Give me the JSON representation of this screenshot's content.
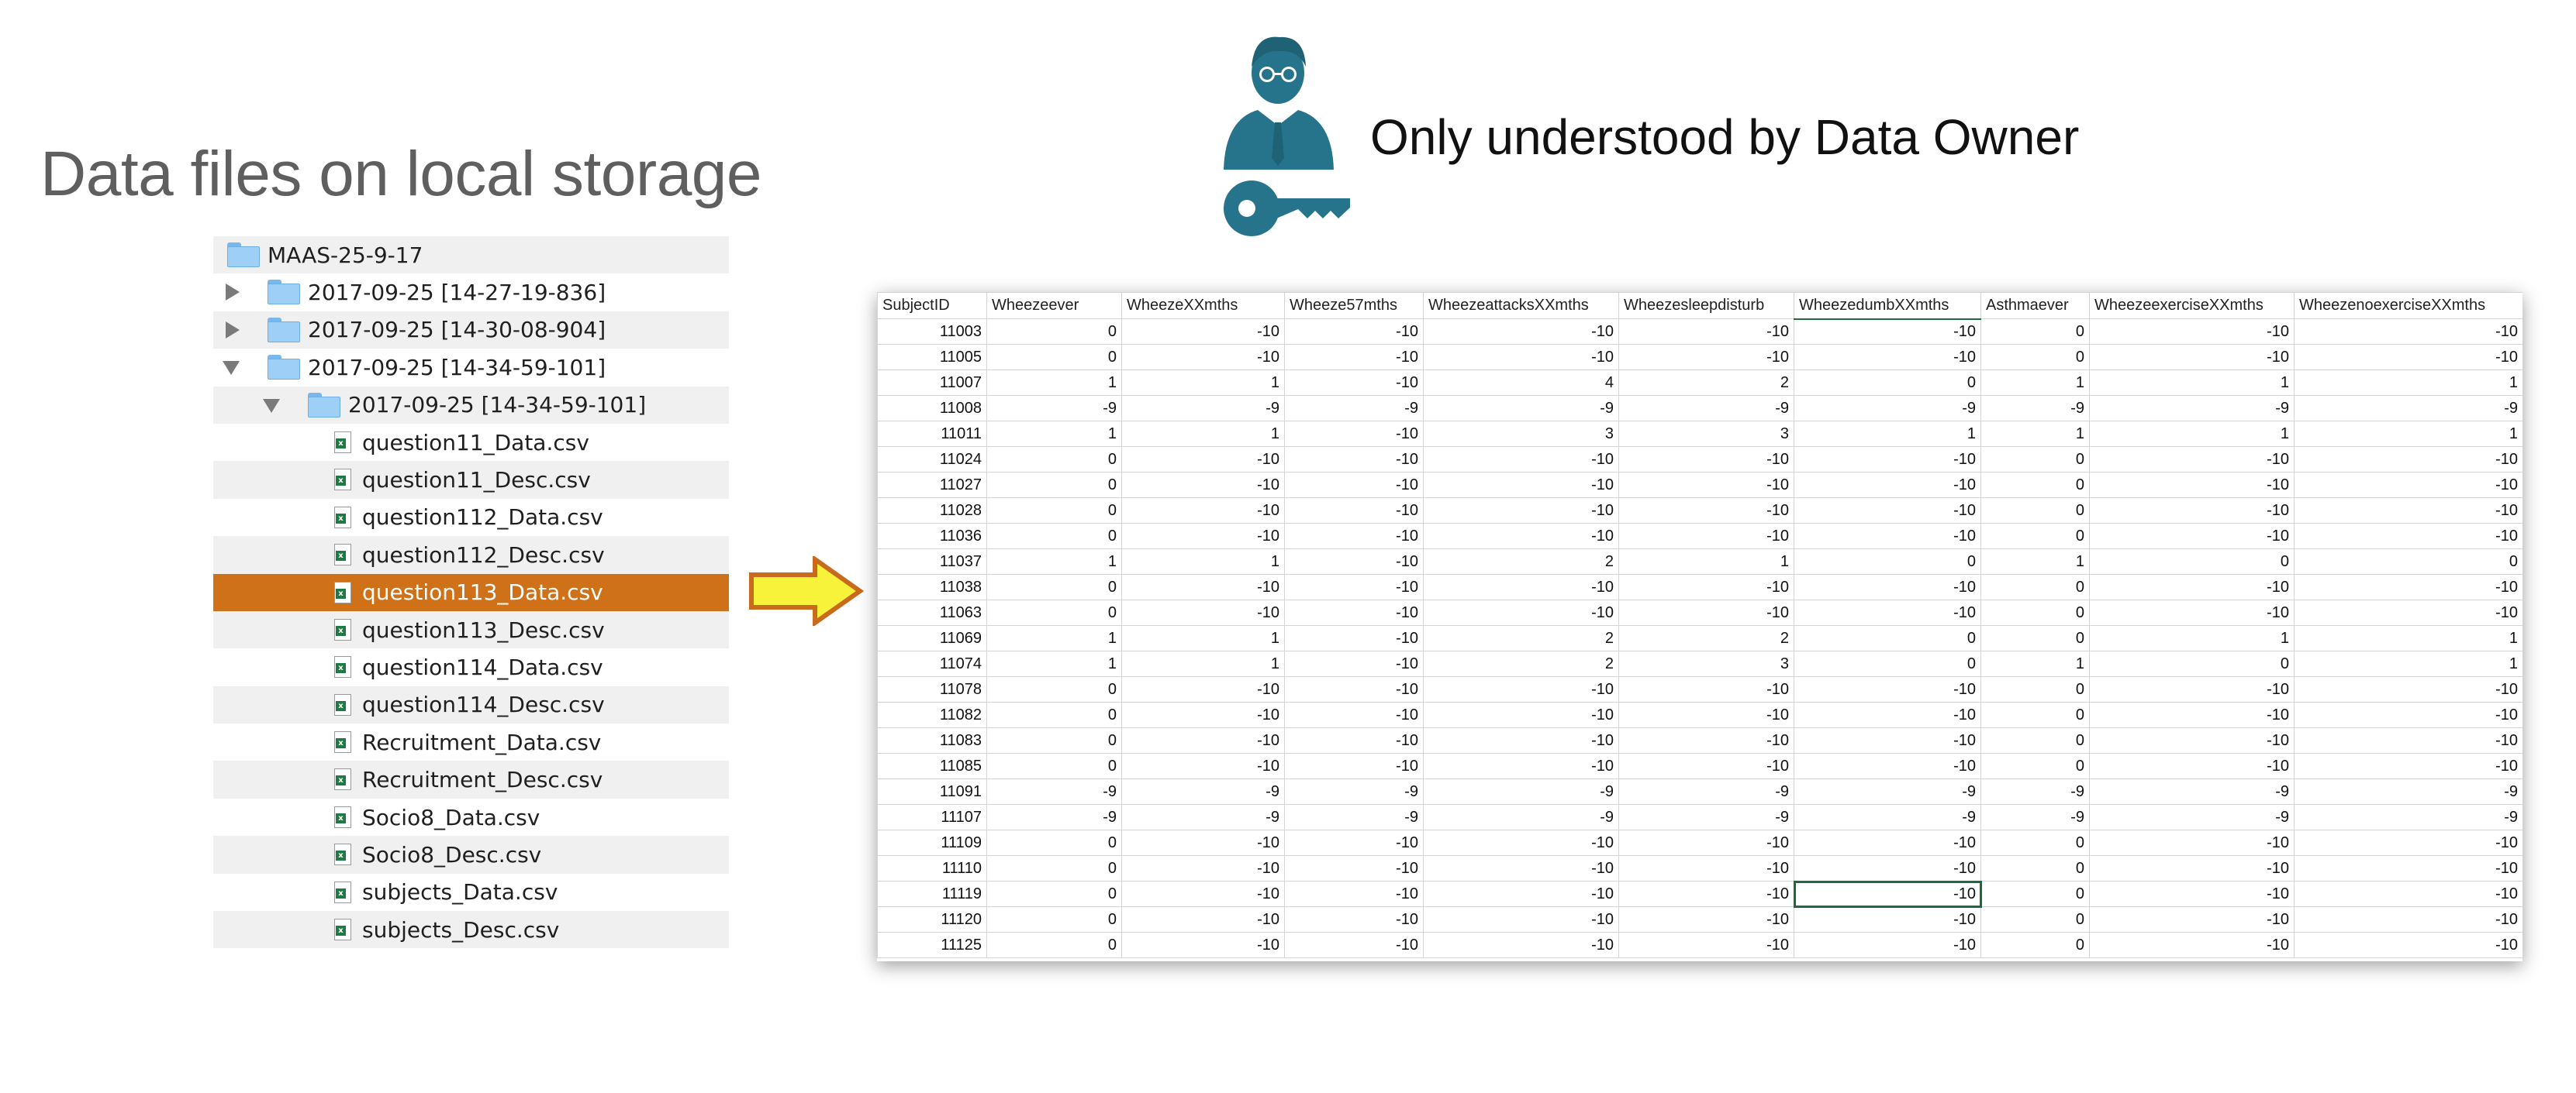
{
  "title": "Data files on local storage",
  "owner_label": "Only understood by Data Owner",
  "tree": [
    {
      "label": "MAAS-25-9-17",
      "type": "folder",
      "toggle": "none",
      "indent": 0,
      "shade": true
    },
    {
      "label": "2017-09-25 [14-27-19-836]",
      "type": "folder",
      "toggle": "collapsed",
      "indent": 1,
      "shade": false
    },
    {
      "label": "2017-09-25 [14-30-08-904]",
      "type": "folder",
      "toggle": "collapsed",
      "indent": 1,
      "shade": true
    },
    {
      "label": "2017-09-25 [14-34-59-101]",
      "type": "folder",
      "toggle": "expanded",
      "indent": 1,
      "shade": false
    },
    {
      "label": "2017-09-25 [14-34-59-101]",
      "type": "folder",
      "toggle": "expanded",
      "indent": 2,
      "shade": true
    },
    {
      "label": "question11_Data.csv",
      "type": "csv",
      "indent": 3,
      "shade": false
    },
    {
      "label": "question11_Desc.csv",
      "type": "csv",
      "indent": 3,
      "shade": true
    },
    {
      "label": "question112_Data.csv",
      "type": "csv",
      "indent": 3,
      "shade": false
    },
    {
      "label": "question112_Desc.csv",
      "type": "csv",
      "indent": 3,
      "shade": true
    },
    {
      "label": "question113_Data.csv",
      "type": "csv",
      "indent": 3,
      "shade": false,
      "selected": true
    },
    {
      "label": "question113_Desc.csv",
      "type": "csv",
      "indent": 3,
      "shade": true
    },
    {
      "label": "question114_Data.csv",
      "type": "csv",
      "indent": 3,
      "shade": false
    },
    {
      "label": "question114_Desc.csv",
      "type": "csv",
      "indent": 3,
      "shade": true
    },
    {
      "label": "Recruitment_Data.csv",
      "type": "csv",
      "indent": 3,
      "shade": false
    },
    {
      "label": "Recruitment_Desc.csv",
      "type": "csv",
      "indent": 3,
      "shade": true
    },
    {
      "label": "Socio8_Data.csv",
      "type": "csv",
      "indent": 3,
      "shade": false
    },
    {
      "label": "Socio8_Desc.csv",
      "type": "csv",
      "indent": 3,
      "shade": true
    },
    {
      "label": "subjects_Data.csv",
      "type": "csv",
      "indent": 3,
      "shade": false
    },
    {
      "label": "subjects_Desc.csv",
      "type": "csv",
      "indent": 3,
      "shade": true
    }
  ],
  "sheet": {
    "columns": [
      "SubjectID",
      "Wheezeever",
      "WheezeXXmths",
      "Wheeze57mths",
      "WheezeattacksXXmths",
      "Wheezesleepdisturb",
      "WheezedumbXXmths",
      "Asthmaever",
      "WheezeexerciseXXmths",
      "WheezenoexerciseXXmths"
    ],
    "rows": [
      [
        "11003",
        "0",
        "-10",
        "-10",
        "-10",
        "-10",
        "-10",
        "0",
        "-10",
        "-10"
      ],
      [
        "11005",
        "0",
        "-10",
        "-10",
        "-10",
        "-10",
        "-10",
        "0",
        "-10",
        "-10"
      ],
      [
        "11007",
        "1",
        "1",
        "-10",
        "4",
        "2",
        "0",
        "1",
        "1",
        "1"
      ],
      [
        "11008",
        "-9",
        "-9",
        "-9",
        "-9",
        "-9",
        "-9",
        "-9",
        "-9",
        "-9"
      ],
      [
        "11011",
        "1",
        "1",
        "-10",
        "3",
        "3",
        "1",
        "1",
        "1",
        "1"
      ],
      [
        "11024",
        "0",
        "-10",
        "-10",
        "-10",
        "-10",
        "-10",
        "0",
        "-10",
        "-10"
      ],
      [
        "11027",
        "0",
        "-10",
        "-10",
        "-10",
        "-10",
        "-10",
        "0",
        "-10",
        "-10"
      ],
      [
        "11028",
        "0",
        "-10",
        "-10",
        "-10",
        "-10",
        "-10",
        "0",
        "-10",
        "-10"
      ],
      [
        "11036",
        "0",
        "-10",
        "-10",
        "-10",
        "-10",
        "-10",
        "0",
        "-10",
        "-10"
      ],
      [
        "11037",
        "1",
        "1",
        "-10",
        "2",
        "1",
        "0",
        "1",
        "0",
        "0"
      ],
      [
        "11038",
        "0",
        "-10",
        "-10",
        "-10",
        "-10",
        "-10",
        "0",
        "-10",
        "-10"
      ],
      [
        "11063",
        "0",
        "-10",
        "-10",
        "-10",
        "-10",
        "-10",
        "0",
        "-10",
        "-10"
      ],
      [
        "11069",
        "1",
        "1",
        "-10",
        "2",
        "2",
        "0",
        "0",
        "1",
        "1"
      ],
      [
        "11074",
        "1",
        "1",
        "-10",
        "2",
        "3",
        "0",
        "1",
        "0",
        "1"
      ],
      [
        "11078",
        "0",
        "-10",
        "-10",
        "-10",
        "-10",
        "-10",
        "0",
        "-10",
        "-10"
      ],
      [
        "11082",
        "0",
        "-10",
        "-10",
        "-10",
        "-10",
        "-10",
        "0",
        "-10",
        "-10"
      ],
      [
        "11083",
        "0",
        "-10",
        "-10",
        "-10",
        "-10",
        "-10",
        "0",
        "-10",
        "-10"
      ],
      [
        "11085",
        "0",
        "-10",
        "-10",
        "-10",
        "-10",
        "-10",
        "0",
        "-10",
        "-10"
      ],
      [
        "11091",
        "-9",
        "-9",
        "-9",
        "-9",
        "-9",
        "-9",
        "-9",
        "-9",
        "-9"
      ],
      [
        "11107",
        "-9",
        "-9",
        "-9",
        "-9",
        "-9",
        "-9",
        "-9",
        "-9",
        "-9"
      ],
      [
        "11109",
        "0",
        "-10",
        "-10",
        "-10",
        "-10",
        "-10",
        "0",
        "-10",
        "-10"
      ],
      [
        "11110",
        "0",
        "-10",
        "-10",
        "-10",
        "-10",
        "-10",
        "0",
        "-10",
        "-10"
      ],
      [
        "11119",
        "0",
        "-10",
        "-10",
        "-10",
        "-10",
        "-10",
        "0",
        "-10",
        "-10"
      ],
      [
        "11120",
        "0",
        "-10",
        "-10",
        "-10",
        "-10",
        "-10",
        "0",
        "-10",
        "-10"
      ],
      [
        "11125",
        "0",
        "-10",
        "-10",
        "-10",
        "-10",
        "-10",
        "0",
        "-10",
        "-10"
      ]
    ],
    "active_cell": {
      "row": 22,
      "col": 6
    }
  },
  "colors": {
    "selected_row": "#cf7118",
    "arrow_fill": "#f7f23a",
    "arrow_stroke": "#c96a1c",
    "owner_icon": "#26748c",
    "active_cell_border": "#1d6b3d"
  },
  "icons": {
    "owner": "businessman-icon",
    "key": "key-icon",
    "folder": "folder-icon",
    "csv": "excel-csv-icon",
    "arrow": "right-arrow-icon"
  }
}
